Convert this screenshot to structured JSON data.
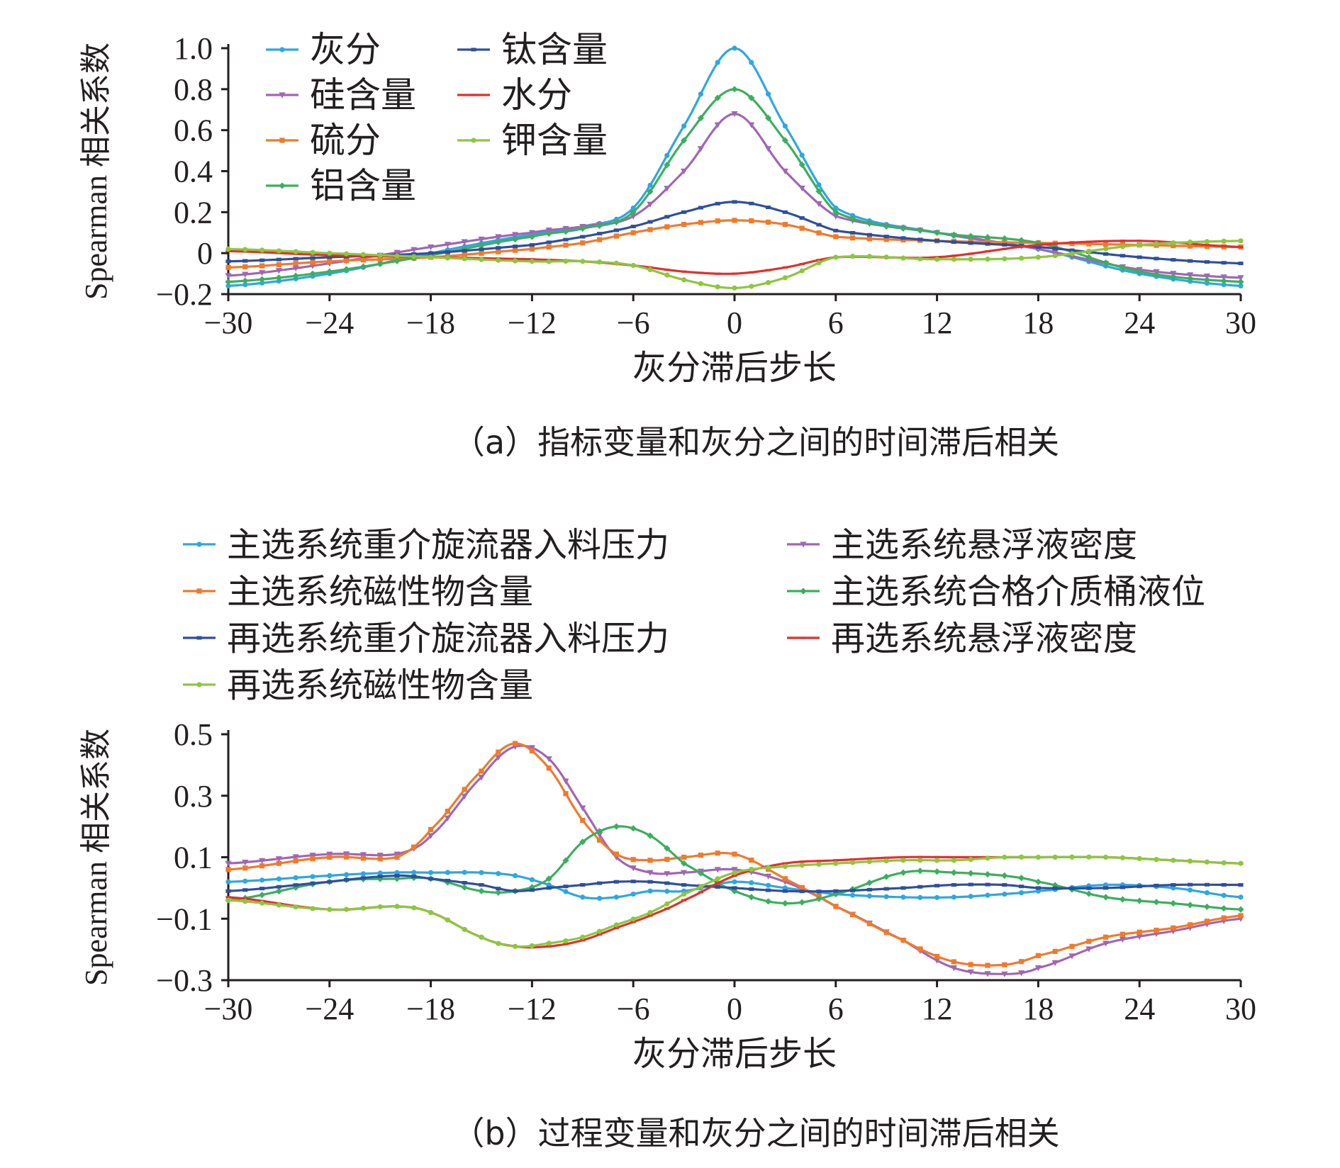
{
  "chart_data": [
    {
      "type": "line",
      "caption": "（a）指标变量和灰分之间的时间滞后相关",
      "xlabel": "灰分滞后步长",
      "ylabel": "Spearman 相关系数",
      "xlim": [
        -30,
        30
      ],
      "ylim": [
        -0.2,
        1.0
      ],
      "xticks": [
        "−30",
        "−24",
        "−18",
        "−12",
        "−6",
        "0",
        "6",
        "12",
        "18",
        "24",
        "30"
      ],
      "yticks": [
        "−0.2",
        "0",
        "0.2",
        "0.4",
        "0.6",
        "0.8",
        "1.0"
      ],
      "x": [
        -30,
        -24,
        -18,
        -12,
        -9,
        -6,
        -3,
        0,
        3,
        6,
        12,
        18,
        24,
        30
      ],
      "series": [
        {
          "name": "灰分",
          "color": "#2ea7e0",
          "marker": "circle",
          "values": [
            -0.16,
            -0.1,
            0.0,
            0.09,
            0.13,
            0.22,
            0.62,
            1.0,
            0.62,
            0.22,
            0.1,
            0.02,
            -0.1,
            -0.16
          ]
        },
        {
          "name": "硅含量",
          "color": "#a066b5",
          "marker": "triangle",
          "values": [
            -0.11,
            -0.05,
            0.03,
            0.1,
            0.13,
            0.18,
            0.4,
            0.68,
            0.4,
            0.18,
            0.1,
            0.02,
            -0.08,
            -0.12
          ]
        },
        {
          "name": "硫分",
          "color": "#f07a2b",
          "marker": "square",
          "values": [
            -0.07,
            -0.04,
            -0.02,
            0.02,
            0.05,
            0.1,
            0.14,
            0.16,
            0.14,
            0.08,
            0.06,
            0.05,
            0.04,
            0.03
          ]
        },
        {
          "name": "铝含量",
          "color": "#3cae5f",
          "marker": "diamond",
          "values": [
            -0.14,
            -0.09,
            -0.01,
            0.08,
            0.12,
            0.2,
            0.55,
            0.8,
            0.55,
            0.2,
            0.1,
            0.05,
            -0.09,
            -0.14
          ]
        },
        {
          "name": "钛含量",
          "color": "#2e4f9e",
          "marker": "plus",
          "values": [
            -0.04,
            -0.02,
            0.0,
            0.04,
            0.08,
            0.13,
            0.2,
            0.25,
            0.2,
            0.11,
            0.06,
            0.03,
            -0.02,
            -0.05
          ]
        },
        {
          "name": "水分",
          "color": "#e0312b",
          "marker": "dash",
          "values": [
            0.01,
            -0.01,
            -0.02,
            -0.03,
            -0.04,
            -0.06,
            -0.09,
            -0.1,
            -0.07,
            -0.02,
            -0.02,
            0.04,
            0.06,
            0.03
          ]
        },
        {
          "name": "钾含量",
          "color": "#8dc63f",
          "marker": "circle",
          "values": [
            0.02,
            0.0,
            -0.02,
            -0.04,
            -0.04,
            -0.06,
            -0.13,
            -0.17,
            -0.12,
            -0.02,
            -0.03,
            -0.02,
            0.04,
            0.06
          ]
        }
      ]
    },
    {
      "type": "line",
      "caption": "（b）过程变量和灰分之间的时间滞后相关",
      "xlabel": "灰分滞后步长",
      "ylabel": "Spearman 相关系数",
      "xlim": [
        -30,
        30
      ],
      "ylim": [
        -0.3,
        0.5
      ],
      "xticks": [
        "−30",
        "−24",
        "−18",
        "−12",
        "−6",
        "0",
        "6",
        "12",
        "18",
        "24",
        "30"
      ],
      "yticks": [
        "−0.3",
        "−0.1",
        "0.1",
        "0.3",
        "0.5"
      ],
      "x": [
        -30,
        -24,
        -20,
        -18,
        -15,
        -13,
        -11,
        -9,
        -7,
        -5,
        -3,
        0,
        3,
        6,
        10,
        13,
        16,
        18,
        22,
        26,
        30
      ],
      "series": [
        {
          "name": "主选系统重介旋流器入料压力",
          "color": "#2ea7e0",
          "marker": "circle",
          "values": [
            0.02,
            0.04,
            0.05,
            0.05,
            0.05,
            0.04,
            0.01,
            -0.03,
            -0.03,
            -0.01,
            -0.01,
            0.02,
            0.0,
            -0.02,
            -0.03,
            -0.03,
            -0.02,
            -0.01,
            0.01,
            0.0,
            -0.03
          ]
        },
        {
          "name": "主选系统悬浮液密度",
          "color": "#a066b5",
          "marker": "triangle",
          "values": [
            0.08,
            0.11,
            0.11,
            0.17,
            0.36,
            0.46,
            0.42,
            0.26,
            0.1,
            0.05,
            0.05,
            0.06,
            0.02,
            -0.06,
            -0.17,
            -0.26,
            -0.28,
            -0.26,
            -0.18,
            -0.14,
            -0.1
          ]
        },
        {
          "name": "主选系统磁性物含量",
          "color": "#f07a2b",
          "marker": "square",
          "values": [
            0.06,
            0.1,
            0.1,
            0.19,
            0.38,
            0.47,
            0.39,
            0.22,
            0.11,
            0.09,
            0.1,
            0.11,
            0.03,
            -0.06,
            -0.17,
            -0.24,
            -0.25,
            -0.22,
            -0.16,
            -0.13,
            -0.09
          ]
        },
        {
          "name": "主选系统合格介质桶液位",
          "color": "#3cae5f",
          "marker": "diamond",
          "values": [
            -0.04,
            0.02,
            0.03,
            0.03,
            -0.01,
            -0.01,
            0.03,
            0.15,
            0.2,
            0.17,
            0.08,
            -0.01,
            -0.05,
            -0.02,
            0.05,
            0.05,
            0.04,
            0.02,
            -0.03,
            -0.05,
            -0.07
          ]
        },
        {
          "name": "再选系统重介旋流器入料压力",
          "color": "#2e4f9e",
          "marker": "plus",
          "values": [
            -0.01,
            0.02,
            0.04,
            0.03,
            0.01,
            -0.01,
            0.0,
            0.01,
            0.02,
            0.02,
            0.01,
            0.0,
            -0.01,
            -0.01,
            0.0,
            0.01,
            0.01,
            0.0,
            0.0,
            0.01,
            0.01
          ]
        },
        {
          "name": "再选系统悬浮液密度",
          "color": "#e0312b",
          "marker": "dash",
          "values": [
            -0.03,
            -0.07,
            -0.06,
            -0.08,
            -0.16,
            -0.19,
            -0.19,
            -0.17,
            -0.13,
            -0.09,
            -0.04,
            0.04,
            0.08,
            0.09,
            0.1,
            0.1,
            0.1,
            0.1,
            0.1,
            0.09,
            0.08
          ]
        },
        {
          "name": "再选系统磁性物含量",
          "color": "#8dc63f",
          "marker": "circle",
          "values": [
            -0.04,
            -0.07,
            -0.06,
            -0.08,
            -0.16,
            -0.19,
            -0.18,
            -0.16,
            -0.12,
            -0.08,
            -0.02,
            0.05,
            0.07,
            0.08,
            0.09,
            0.09,
            0.1,
            0.1,
            0.1,
            0.09,
            0.08
          ]
        }
      ]
    }
  ]
}
